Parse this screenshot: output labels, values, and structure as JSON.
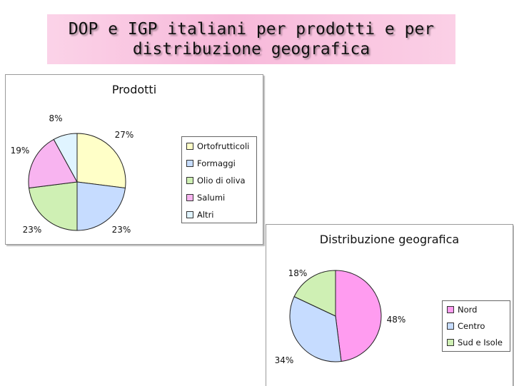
{
  "page": {
    "title_line1": "DOP e IGP italiani per prodotti e per",
    "title_line2": "distribuzione geografica"
  },
  "chart_data": [
    {
      "type": "pie",
      "title": "Prodotti",
      "labels": [
        "Ortofrutticoli",
        "Formaggi",
        "Olio di oliva",
        "Salumi",
        "Altri"
      ],
      "values": [
        27,
        23,
        23,
        19,
        8
      ],
      "value_labels": [
        "27%",
        "23%",
        "23%",
        "19%",
        "8%"
      ],
      "colors": [
        "#ffffc8",
        "#c6dcff",
        "#cff0b4",
        "#f8b4f0",
        "#e0f4ff"
      ],
      "legend_position": "right"
    },
    {
      "type": "pie",
      "title": "Distribuzione geografica",
      "labels": [
        "Nord",
        "Centro",
        "Sud e Isole"
      ],
      "values": [
        48,
        34,
        18
      ],
      "value_labels": [
        "48%",
        "34%",
        "18%"
      ],
      "colors": [
        "#ff9cf0",
        "#c6dcff",
        "#cff0b4"
      ],
      "legend_position": "right"
    }
  ]
}
